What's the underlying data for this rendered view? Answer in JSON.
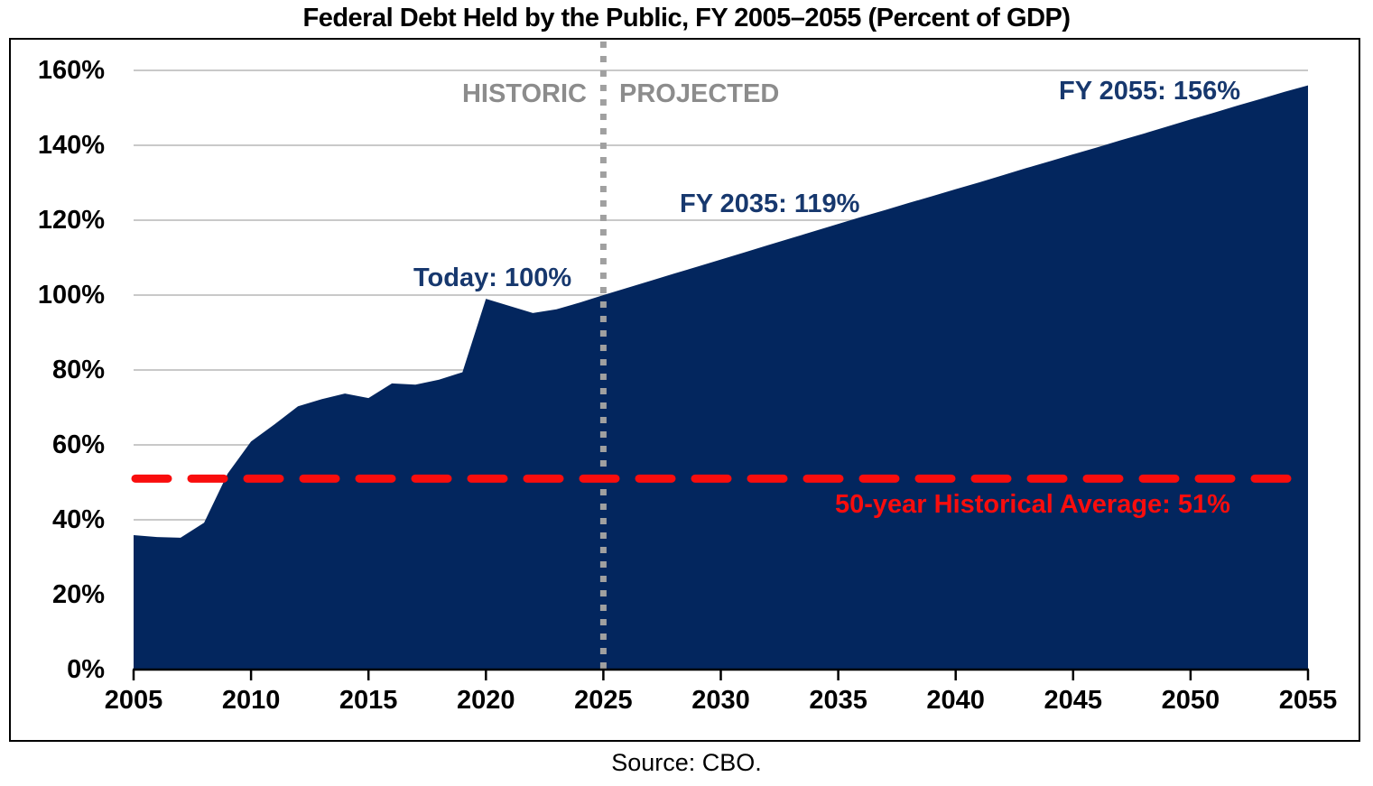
{
  "title": "Federal Debt Held by the Public, FY 2005–2055 (Percent of GDP)",
  "source": "Source: CBO.",
  "divider_labels": {
    "historic": "HISTORIC",
    "projected": "PROJECTED"
  },
  "annotations": {
    "today": "Today: 100%",
    "fy2035": "FY 2035: 119%",
    "fy2055": "FY 2055: 156%",
    "average": "50-year Historical Average: 51%"
  },
  "colors": {
    "area_fill": "#03265e",
    "annotation_text": "#17386e",
    "average_line": "#f90d0d",
    "average_text": "#f90d0d",
    "divider_line": "#a0a0a0",
    "divider_text": "#8c8c8c",
    "gridline": "#c9c9c9",
    "axis_line": "#000000",
    "axis_text": "#000000",
    "border": "#000000"
  },
  "chart_data": {
    "type": "area",
    "title": "Federal Debt Held by the Public, FY 2005–2055 (Percent of GDP)",
    "xlabel": "",
    "ylabel": "",
    "x": [
      2005,
      2006,
      2007,
      2008,
      2009,
      2010,
      2011,
      2012,
      2013,
      2014,
      2015,
      2016,
      2017,
      2018,
      2019,
      2020,
      2021,
      2022,
      2023,
      2024,
      2025,
      2026,
      2027,
      2028,
      2029,
      2030,
      2031,
      2032,
      2033,
      2034,
      2035,
      2036,
      2037,
      2038,
      2039,
      2040,
      2041,
      2042,
      2043,
      2044,
      2045,
      2046,
      2047,
      2048,
      2049,
      2050,
      2051,
      2052,
      2053,
      2054,
      2055
    ],
    "values": [
      35.9,
      35.4,
      35.2,
      39.2,
      52.3,
      60.9,
      65.5,
      70.3,
      72.2,
      73.7,
      72.5,
      76.4,
      76.1,
      77.4,
      79.4,
      99.0,
      97.1,
      95.2,
      96.2,
      98.0,
      100.0,
      101.9,
      103.8,
      105.7,
      107.6,
      109.5,
      111.4,
      113.3,
      115.2,
      117.1,
      119.0,
      120.9,
      122.7,
      124.6,
      126.4,
      128.3,
      130.1,
      132.0,
      133.9,
      135.7,
      137.6,
      139.4,
      141.3,
      143.1,
      145.0,
      146.9,
      148.7,
      150.6,
      152.4,
      154.3,
      156.0
    ],
    "x_ticks": [
      2005,
      2010,
      2015,
      2020,
      2025,
      2030,
      2035,
      2040,
      2045,
      2050,
      2055
    ],
    "y_ticks": [
      0,
      20,
      40,
      60,
      80,
      100,
      120,
      140,
      160
    ],
    "y_tick_labels": [
      "0%",
      "20%",
      "40%",
      "60%",
      "80%",
      "100%",
      "120%",
      "140%",
      "160%"
    ],
    "xlim": [
      2005,
      2055
    ],
    "ylim": [
      0,
      160
    ],
    "grid": "horizontal",
    "legend": "none",
    "historic_projected_divider_x": 2025,
    "average_line_value": 51,
    "key_points": {
      "today_2025": 100,
      "fy_2035": 119,
      "fy_2055": 156
    }
  }
}
